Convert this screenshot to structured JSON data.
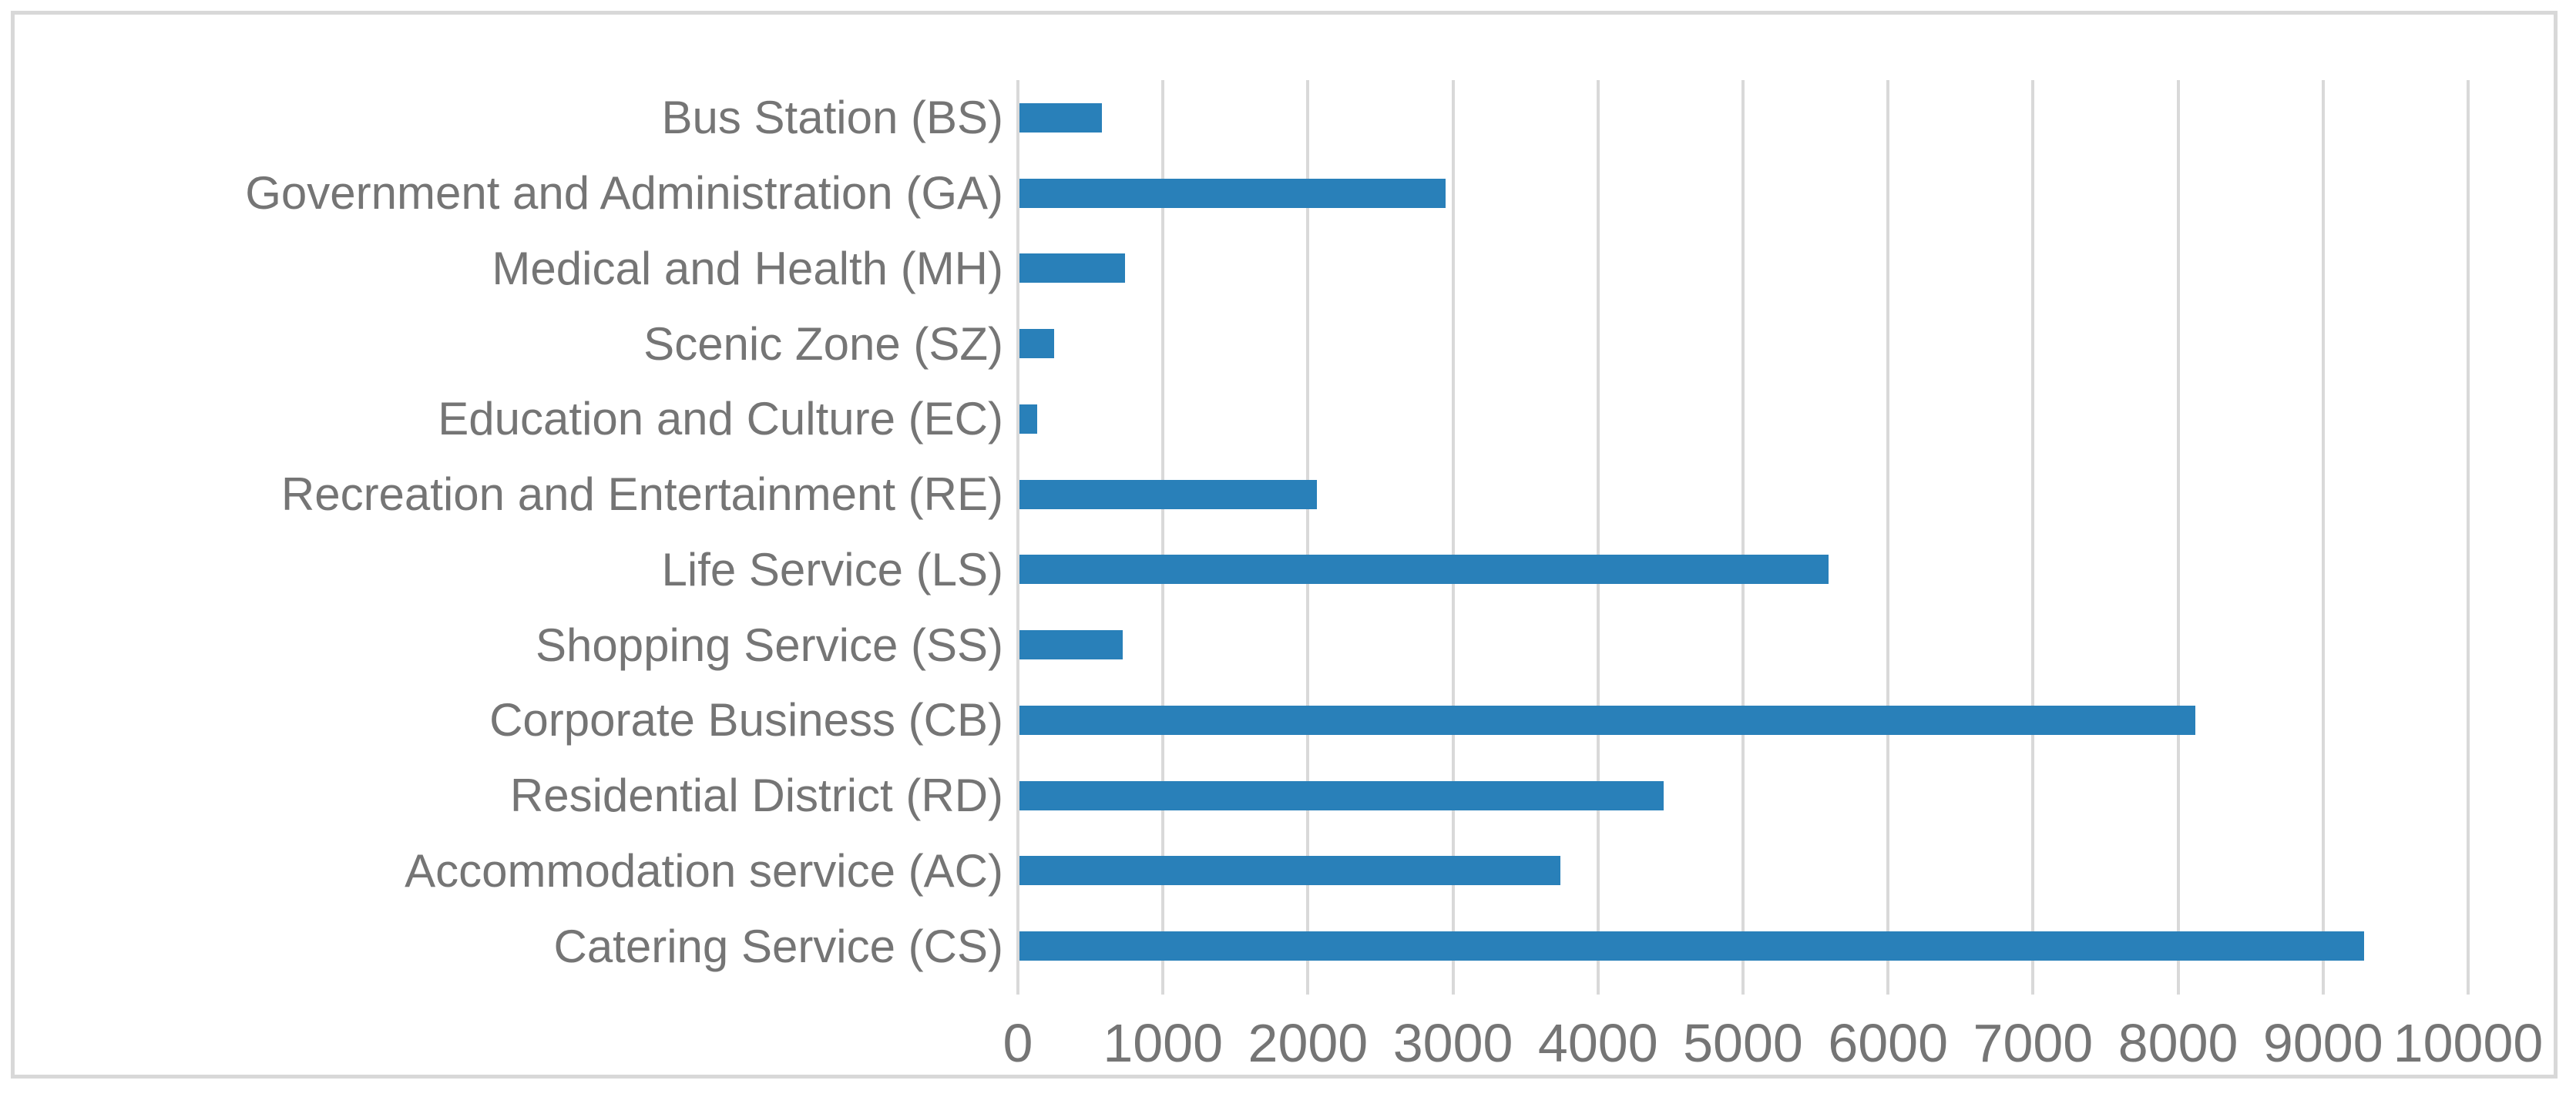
{
  "chart_data": {
    "type": "bar",
    "orientation": "horizontal",
    "title": "",
    "xlabel": "",
    "ylabel": "",
    "categories": [
      "Bus Station (BS)",
      "Government and Administration (GA)",
      "Medical and Health (MH)",
      "Scenic Zone (SZ)",
      "Education and Culture (EC)",
      "Recreation and Entertainment (RE)",
      "Life Service (LS)",
      "Shopping Service (SS)",
      "Corporate Business (CB)",
      "Residential District (RD)",
      "Accommodation service (AC)",
      "Catering Service (CS)"
    ],
    "values": [
      570,
      2940,
      730,
      240,
      120,
      2050,
      5580,
      710,
      8110,
      4440,
      3730,
      9270
    ],
    "xlim": [
      0,
      10000
    ],
    "xticks": [
      0,
      1000,
      2000,
      3000,
      4000,
      5000,
      6000,
      7000,
      8000,
      9000,
      10000
    ],
    "grid": true,
    "legend": "none",
    "colors": {
      "bar": "#2980b9",
      "gridline": "#d9d9d9",
      "text": "#757575",
      "frame": "#d8d8d8"
    }
  }
}
